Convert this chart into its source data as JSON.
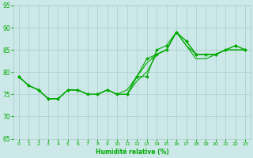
{
  "xlabel": "Humidité relative (%)",
  "bg_color": "#cce8e8",
  "grid_color": "#aacccc",
  "line_color": "#00aa00",
  "xlim": [
    -0.5,
    23.5
  ],
  "ylim": [
    65,
    95
  ],
  "yticks": [
    65,
    70,
    75,
    80,
    85,
    90,
    95
  ],
  "xticks": [
    0,
    1,
    2,
    3,
    4,
    5,
    6,
    7,
    8,
    9,
    10,
    11,
    12,
    13,
    14,
    15,
    16,
    17,
    18,
    19,
    20,
    21,
    22,
    23
  ],
  "series1_x": [
    0,
    1,
    2,
    3,
    4,
    5,
    6,
    7,
    8,
    9,
    10,
    11,
    12,
    13,
    14,
    15,
    16,
    17,
    18,
    19,
    20,
    21,
    22,
    23
  ],
  "series1_y": [
    79,
    77,
    76,
    74,
    74,
    76,
    76,
    75,
    75,
    76,
    75,
    75,
    79,
    83,
    84,
    85,
    89,
    87,
    84,
    84,
    84,
    85,
    86,
    85
  ],
  "series2_x": [
    0,
    1,
    2,
    3,
    4,
    5,
    6,
    7,
    8,
    9,
    10,
    11,
    12,
    13,
    14,
    15,
    16,
    17,
    18,
    19,
    20,
    21,
    22,
    23
  ],
  "series2_y": [
    79,
    77,
    76,
    74,
    74,
    76,
    76,
    75,
    75,
    76,
    75,
    75,
    79,
    79,
    85,
    86,
    89,
    87,
    84,
    84,
    84,
    85,
    86,
    85
  ],
  "series3_x": [
    0,
    1,
    2,
    3,
    4,
    5,
    6,
    7,
    8,
    9,
    10,
    11,
    12,
    13,
    14,
    15,
    16,
    17,
    18,
    19,
    20,
    21,
    22,
    23
  ],
  "series3_y": [
    79,
    77,
    76,
    74,
    74,
    76,
    76,
    75,
    75,
    76,
    75,
    76,
    79,
    82,
    84,
    85,
    89,
    86,
    84,
    84,
    84,
    85,
    85,
    85
  ],
  "series4_x": [
    0,
    1,
    2,
    3,
    4,
    5,
    6,
    7,
    8,
    9,
    10,
    11,
    12,
    13,
    14,
    15,
    16,
    17,
    18,
    19,
    20,
    21,
    22,
    23
  ],
  "series4_y": [
    79,
    77,
    76,
    74,
    74,
    76,
    76,
    75,
    75,
    76,
    75,
    75,
    78,
    80,
    84,
    85,
    89,
    86,
    83,
    83,
    84,
    85,
    85,
    85
  ]
}
